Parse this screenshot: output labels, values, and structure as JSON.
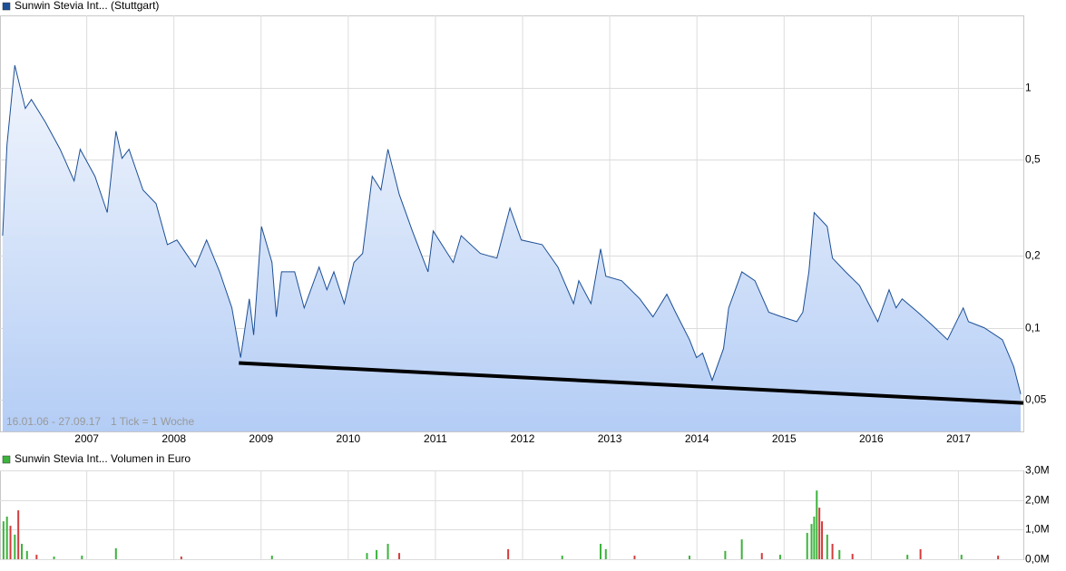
{
  "chart_data": [
    {
      "type": "line",
      "log_y": true,
      "grid": true,
      "legend": "top-left",
      "annotations": [
        "16.01.06 - 27.09.17",
        "1 Tick = 1 Woche"
      ],
      "xlim": [
        2006.01,
        2017.75
      ],
      "xticks": [
        2007,
        2008,
        2009,
        2010,
        2011,
        2012,
        2013,
        2014,
        2015,
        2016,
        2017
      ],
      "ylim": [
        0.037,
        2.0
      ],
      "yticks": [
        {
          "value": 0.05,
          "label": "0,05"
        },
        {
          "value": 0.1,
          "label": "0,1"
        },
        {
          "value": 0.2,
          "label": "0,2"
        },
        {
          "value": 0.5,
          "label": "0,5"
        },
        1
      ],
      "x": [
        2006.04,
        2006.09,
        2006.18,
        2006.3,
        2006.37,
        2006.53,
        2006.7,
        2006.86,
        2006.93,
        2007.1,
        2007.24,
        2007.34,
        2007.41,
        2007.49,
        2007.65,
        2007.8,
        2007.93,
        2008.04,
        2008.25,
        2008.38,
        2008.53,
        2008.67,
        2008.77,
        2008.87,
        2008.92,
        2009.01,
        2009.13,
        2009.18,
        2009.24,
        2009.39,
        2009.5,
        2009.67,
        2009.76,
        2009.84,
        2009.96,
        2010.07,
        2010.17,
        2010.28,
        2010.38,
        2010.46,
        2010.59,
        2010.74,
        2010.92,
        2010.98,
        2011.21,
        2011.3,
        2011.52,
        2011.71,
        2011.86,
        2011.99,
        2012.23,
        2012.41,
        2012.59,
        2012.65,
        2012.79,
        2012.9,
        2012.96,
        2013.14,
        2013.35,
        2013.5,
        2013.66,
        2013.76,
        2013.92,
        2014.0,
        2014.07,
        2014.18,
        2014.31,
        2014.37,
        2014.52,
        2014.67,
        2014.83,
        2014.98,
        2015.15,
        2015.22,
        2015.29,
        2015.35,
        2015.5,
        2015.56,
        2015.71,
        2015.87,
        2016.08,
        2016.21,
        2016.29,
        2016.36,
        2016.54,
        2016.71,
        2016.88,
        2017.06,
        2017.12,
        2017.3,
        2017.51,
        2017.64,
        2017.72
      ],
      "series": [
        {
          "name": "Sunwin Stevia Int... (Stuttgart)",
          "color": "#1c4f96",
          "values": [
            0.242,
            0.578,
            1.24,
            0.819,
            0.893,
            0.719,
            0.554,
            0.409,
            0.554,
            0.427,
            0.302,
            0.659,
            0.508,
            0.554,
            0.375,
            0.329,
            0.222,
            0.232,
            0.179,
            0.232,
            0.171,
            0.121,
            0.0751,
            0.132,
            0.0933,
            0.264,
            0.187,
            0.111,
            0.171,
            0.171,
            0.121,
            0.179,
            0.144,
            0.171,
            0.126,
            0.187,
            0.204,
            0.427,
            0.375,
            0.554,
            0.359,
            0.253,
            0.171,
            0.253,
            0.187,
            0.242,
            0.204,
            0.195,
            0.315,
            0.232,
            0.222,
            0.179,
            0.126,
            0.157,
            0.126,
            0.213,
            0.164,
            0.157,
            0.132,
            0.111,
            0.138,
            0.116,
            0.0892,
            0.0751,
            0.0784,
            0.0604,
            0.0819,
            0.121,
            0.171,
            0.157,
            0.116,
            0.111,
            0.106,
            0.116,
            0.171,
            0.302,
            0.264,
            0.195,
            0.171,
            0.15,
            0.106,
            0.144,
            0.121,
            0.132,
            0.116,
            0.102,
            0.0892,
            0.121,
            0.106,
            0.1,
            0.0892,
            0.0688,
            0.053
          ]
        }
      ],
      "trendline": {
        "color": "#000000",
        "x": [
          2008.75,
          2017.75
        ],
        "values": [
          0.0713,
          0.0486
        ]
      }
    },
    {
      "type": "bar",
      "grid": true,
      "legend": "top-left",
      "xlim": [
        2006.01,
        2017.75
      ],
      "ylim": [
        0,
        3000000
      ],
      "yticks": [
        {
          "value": 0,
          "label": "0,0M"
        },
        {
          "value": 1000000,
          "label": "1,0M"
        },
        {
          "value": 2000000,
          "label": "2,0M"
        },
        {
          "value": 3000000,
          "label": "3,0M"
        }
      ],
      "x": [
        2006.05,
        2006.09,
        2006.13,
        2006.18,
        2006.22,
        2006.26,
        2006.32,
        2006.43,
        2006.63,
        2006.95,
        2007.34,
        2008.09,
        2009.13,
        2010.22,
        2010.33,
        2010.46,
        2010.59,
        2011.84,
        2012.46,
        2012.9,
        2012.96,
        2013.29,
        2013.92,
        2014.33,
        2014.52,
        2014.75,
        2014.96,
        2015.27,
        2015.32,
        2015.35,
        2015.38,
        2015.41,
        2015.44,
        2015.5,
        2015.56,
        2015.64,
        2015.79,
        2016.42,
        2016.57,
        2017.04,
        2017.46
      ],
      "series": [
        {
          "name": "Sunwin Stevia Int... Volumen in Euro",
          "color": "#3cb33c",
          "values": [
            1280000,
            1440000,
            1130000,
            830000,
            1650000,
            520000,
            280000,
            150000,
            90000,
            120000,
            370000,
            90000,
            120000,
            210000,
            310000,
            520000,
            210000,
            340000,
            120000,
            520000,
            340000,
            120000,
            120000,
            280000,
            670000,
            210000,
            150000,
            890000,
            1190000,
            1440000,
            2320000,
            1740000,
            1280000,
            830000,
            520000,
            310000,
            180000,
            150000,
            340000,
            150000,
            120000
          ],
          "colors": [
            "#3cb33c",
            "#3cb33c",
            "#d23c3c",
            "#3cb33c",
            "#d23c3c",
            "#3cb33c",
            "#3cb33c",
            "#d23c3c",
            "#3cb33c",
            "#3cb33c",
            "#3cb33c",
            "#d23c3c",
            "#3cb33c",
            "#3cb33c",
            "#3cb33c",
            "#3cb33c",
            "#d23c3c",
            "#d23c3c",
            "#3cb33c",
            "#3cb33c",
            "#3cb33c",
            "#d23c3c",
            "#3cb33c",
            "#3cb33c",
            "#3cb33c",
            "#d23c3c",
            "#3cb33c",
            "#3cb33c",
            "#3cb33c",
            "#3cb33c",
            "#3cb33c",
            "#d23c3c",
            "#d23c3c",
            "#3cb33c",
            "#d23c3c",
            "#3cb33c",
            "#d23c3c",
            "#3cb33c",
            "#d23c3c",
            "#3cb33c",
            "#d23c3c"
          ]
        }
      ]
    }
  ]
}
